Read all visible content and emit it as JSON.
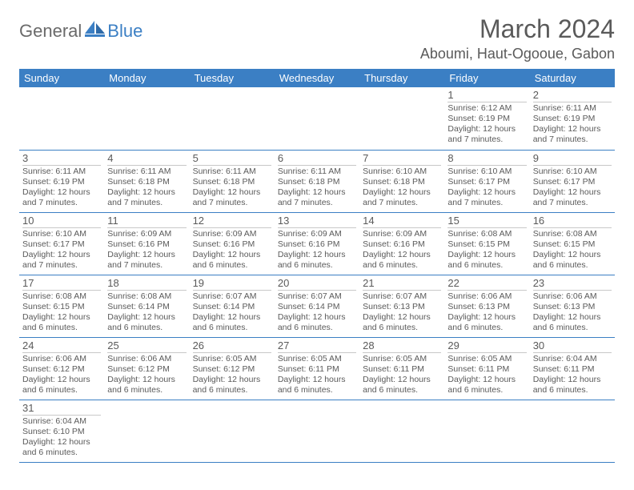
{
  "logo": {
    "part1": "General",
    "part2": "Blue"
  },
  "title": "March 2024",
  "location": "Aboumi, Haut-Ogooue, Gabon",
  "colors": {
    "header_bg": "#3b7fc4",
    "header_fg": "#ffffff",
    "text": "#5a5a5a",
    "cell_rule": "#c8c8c8",
    "row_rule": "#3b7fc4"
  },
  "weekdays": [
    "Sunday",
    "Monday",
    "Tuesday",
    "Wednesday",
    "Thursday",
    "Friday",
    "Saturday"
  ],
  "weeks": [
    [
      null,
      null,
      null,
      null,
      null,
      {
        "n": "1",
        "sr": "6:12 AM",
        "ss": "6:19 PM",
        "dl": "12 hours and 7 minutes."
      },
      {
        "n": "2",
        "sr": "6:11 AM",
        "ss": "6:19 PM",
        "dl": "12 hours and 7 minutes."
      }
    ],
    [
      {
        "n": "3",
        "sr": "6:11 AM",
        "ss": "6:19 PM",
        "dl": "12 hours and 7 minutes."
      },
      {
        "n": "4",
        "sr": "6:11 AM",
        "ss": "6:18 PM",
        "dl": "12 hours and 7 minutes."
      },
      {
        "n": "5",
        "sr": "6:11 AM",
        "ss": "6:18 PM",
        "dl": "12 hours and 7 minutes."
      },
      {
        "n": "6",
        "sr": "6:11 AM",
        "ss": "6:18 PM",
        "dl": "12 hours and 7 minutes."
      },
      {
        "n": "7",
        "sr": "6:10 AM",
        "ss": "6:18 PM",
        "dl": "12 hours and 7 minutes."
      },
      {
        "n": "8",
        "sr": "6:10 AM",
        "ss": "6:17 PM",
        "dl": "12 hours and 7 minutes."
      },
      {
        "n": "9",
        "sr": "6:10 AM",
        "ss": "6:17 PM",
        "dl": "12 hours and 7 minutes."
      }
    ],
    [
      {
        "n": "10",
        "sr": "6:10 AM",
        "ss": "6:17 PM",
        "dl": "12 hours and 7 minutes."
      },
      {
        "n": "11",
        "sr": "6:09 AM",
        "ss": "6:16 PM",
        "dl": "12 hours and 7 minutes."
      },
      {
        "n": "12",
        "sr": "6:09 AM",
        "ss": "6:16 PM",
        "dl": "12 hours and 6 minutes."
      },
      {
        "n": "13",
        "sr": "6:09 AM",
        "ss": "6:16 PM",
        "dl": "12 hours and 6 minutes."
      },
      {
        "n": "14",
        "sr": "6:09 AM",
        "ss": "6:16 PM",
        "dl": "12 hours and 6 minutes."
      },
      {
        "n": "15",
        "sr": "6:08 AM",
        "ss": "6:15 PM",
        "dl": "12 hours and 6 minutes."
      },
      {
        "n": "16",
        "sr": "6:08 AM",
        "ss": "6:15 PM",
        "dl": "12 hours and 6 minutes."
      }
    ],
    [
      {
        "n": "17",
        "sr": "6:08 AM",
        "ss": "6:15 PM",
        "dl": "12 hours and 6 minutes."
      },
      {
        "n": "18",
        "sr": "6:08 AM",
        "ss": "6:14 PM",
        "dl": "12 hours and 6 minutes."
      },
      {
        "n": "19",
        "sr": "6:07 AM",
        "ss": "6:14 PM",
        "dl": "12 hours and 6 minutes."
      },
      {
        "n": "20",
        "sr": "6:07 AM",
        "ss": "6:14 PM",
        "dl": "12 hours and 6 minutes."
      },
      {
        "n": "21",
        "sr": "6:07 AM",
        "ss": "6:13 PM",
        "dl": "12 hours and 6 minutes."
      },
      {
        "n": "22",
        "sr": "6:06 AM",
        "ss": "6:13 PM",
        "dl": "12 hours and 6 minutes."
      },
      {
        "n": "23",
        "sr": "6:06 AM",
        "ss": "6:13 PM",
        "dl": "12 hours and 6 minutes."
      }
    ],
    [
      {
        "n": "24",
        "sr": "6:06 AM",
        "ss": "6:12 PM",
        "dl": "12 hours and 6 minutes."
      },
      {
        "n": "25",
        "sr": "6:06 AM",
        "ss": "6:12 PM",
        "dl": "12 hours and 6 minutes."
      },
      {
        "n": "26",
        "sr": "6:05 AM",
        "ss": "6:12 PM",
        "dl": "12 hours and 6 minutes."
      },
      {
        "n": "27",
        "sr": "6:05 AM",
        "ss": "6:11 PM",
        "dl": "12 hours and 6 minutes."
      },
      {
        "n": "28",
        "sr": "6:05 AM",
        "ss": "6:11 PM",
        "dl": "12 hours and 6 minutes."
      },
      {
        "n": "29",
        "sr": "6:05 AM",
        "ss": "6:11 PM",
        "dl": "12 hours and 6 minutes."
      },
      {
        "n": "30",
        "sr": "6:04 AM",
        "ss": "6:11 PM",
        "dl": "12 hours and 6 minutes."
      }
    ],
    [
      {
        "n": "31",
        "sr": "6:04 AM",
        "ss": "6:10 PM",
        "dl": "12 hours and 6 minutes."
      },
      null,
      null,
      null,
      null,
      null,
      null
    ]
  ],
  "labels": {
    "sunrise": "Sunrise:",
    "sunset": "Sunset:",
    "daylight": "Daylight:"
  }
}
